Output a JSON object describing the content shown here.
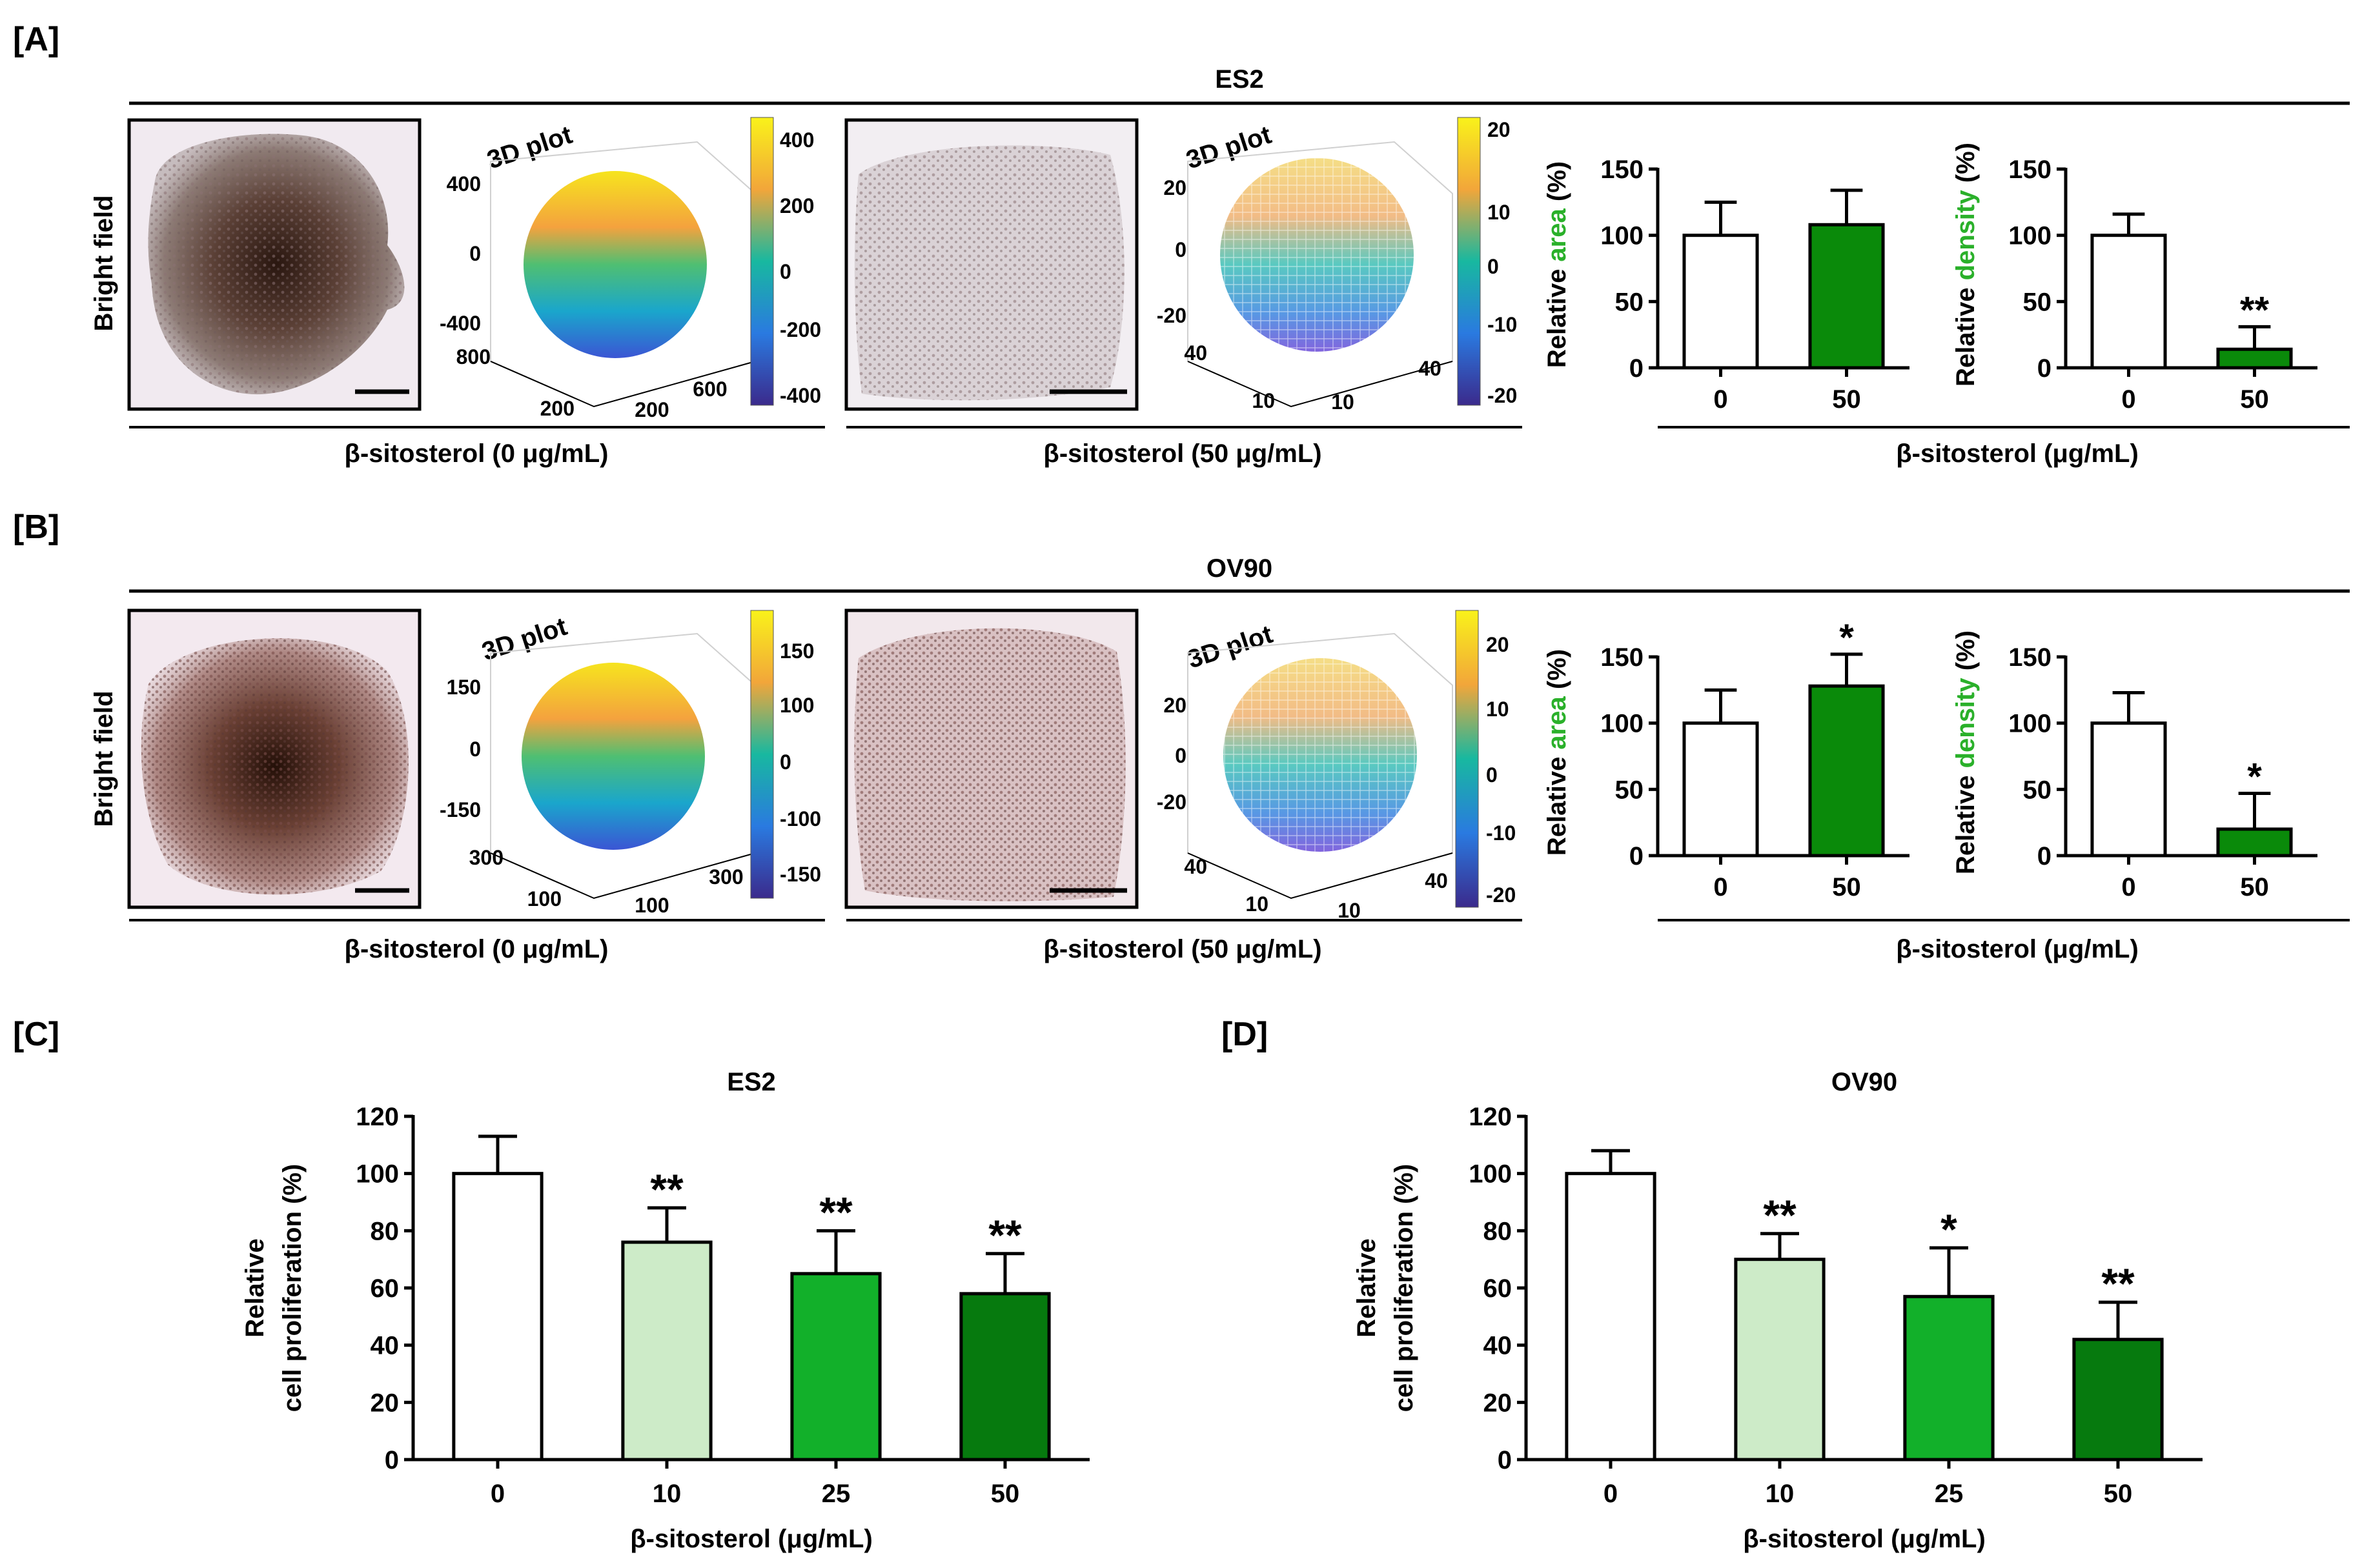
{
  "panels": {
    "A": {
      "tag": "[A]",
      "cell_line": "ES2",
      "row_label": "Bright field",
      "plot_title": "3D plot",
      "caption_0": "β-sitosterol (0 μg/mL)",
      "caption_50": "β-sitosterol (50 μg/mL)",
      "bar_axis_title": "β-sitosterol (μg/mL)",
      "plot0": {
        "z_ticks": [
          "400",
          "0",
          "-400"
        ],
        "y_ticks": [
          "800",
          "200"
        ],
        "x_ticks": [
          "200",
          "600"
        ],
        "colorbar_ticks": [
          "400",
          "200",
          "0",
          "-200",
          "-400"
        ]
      },
      "plot50": {
        "z_ticks": [
          "20",
          "0",
          "-20"
        ],
        "y_ticks": [
          "40",
          "10"
        ],
        "x_ticks": [
          "10",
          "40"
        ],
        "colorbar_ticks": [
          "20",
          "10",
          "0",
          "-10",
          "-20"
        ]
      }
    },
    "B": {
      "tag": "[B]",
      "cell_line": "OV90",
      "row_label": "Bright field",
      "plot_title": "3D plot",
      "caption_0": "β-sitosterol (0 μg/mL)",
      "caption_50": "β-sitosterol (50 μg/mL)",
      "bar_axis_title": "β-sitosterol (μg/mL)",
      "plot0": {
        "z_ticks": [
          "150",
          "0",
          "-150"
        ],
        "y_ticks": [
          "300",
          "100"
        ],
        "x_ticks": [
          "100",
          "300"
        ],
        "colorbar_ticks": [
          "150",
          "100",
          "0",
          "-100",
          "-150"
        ]
      },
      "plot50": {
        "z_ticks": [
          "20",
          "0",
          "-20"
        ],
        "y_ticks": [
          "40",
          "10"
        ],
        "x_ticks": [
          "10",
          "40"
        ],
        "colorbar_ticks": [
          "20",
          "10",
          "0",
          "-10",
          "-20"
        ]
      }
    },
    "C": {
      "tag": "[C]"
    },
    "D": {
      "tag": "[D]"
    }
  },
  "ylabels": {
    "relative": "Relative",
    "area": "area",
    "density": "density",
    "percent": "(%)",
    "prolif_line1": "Relative",
    "prolif_line2": "cell proliferation (%)"
  },
  "colors": {
    "open_bar": "#ffffff",
    "green_bar": "#0a8a0a",
    "green_light": "#cdebc8",
    "green_mid": "#12b02a",
    "green_dark": "#067a0e",
    "label_green": "#2ab02a"
  },
  "chart_data": [
    {
      "id": "A-area",
      "type": "bar",
      "categories": [
        "0",
        "50"
      ],
      "values": [
        100,
        108
      ],
      "errors": [
        25,
        26
      ],
      "significance": [
        "",
        ""
      ],
      "ylim": [
        0,
        150
      ],
      "yticks": [
        0,
        50,
        100,
        150
      ]
    },
    {
      "id": "A-density",
      "type": "bar",
      "categories": [
        "0",
        "50"
      ],
      "values": [
        100,
        14
      ],
      "errors": [
        16,
        17
      ],
      "significance": [
        "",
        "**"
      ],
      "ylim": [
        0,
        150
      ],
      "yticks": [
        0,
        50,
        100,
        150
      ]
    },
    {
      "id": "B-area",
      "type": "bar",
      "categories": [
        "0",
        "50"
      ],
      "values": [
        100,
        128
      ],
      "errors": [
        25,
        24
      ],
      "significance": [
        "",
        "*"
      ],
      "ylim": [
        0,
        150
      ],
      "yticks": [
        0,
        50,
        100,
        150
      ]
    },
    {
      "id": "B-density",
      "type": "bar",
      "categories": [
        "0",
        "50"
      ],
      "values": [
        100,
        20
      ],
      "errors": [
        23,
        27
      ],
      "significance": [
        "",
        "*"
      ],
      "ylim": [
        0,
        150
      ],
      "yticks": [
        0,
        50,
        100,
        150
      ]
    },
    {
      "id": "C",
      "type": "bar",
      "title": "ES2",
      "xlabel": "β-sitosterol (μg/mL)",
      "categories": [
        "0",
        "10",
        "25",
        "50"
      ],
      "values": [
        100,
        76,
        65,
        58
      ],
      "errors": [
        13,
        12,
        15,
        14
      ],
      "significance": [
        "",
        "**",
        "**",
        "**"
      ],
      "ylim": [
        0,
        120
      ],
      "yticks": [
        0,
        20,
        40,
        60,
        80,
        100,
        120
      ]
    },
    {
      "id": "D",
      "type": "bar",
      "title": "OV90",
      "xlabel": "β-sitosterol (μg/mL)",
      "categories": [
        "0",
        "10",
        "25",
        "50"
      ],
      "values": [
        100,
        70,
        57,
        42
      ],
      "errors": [
        8,
        9,
        17,
        13
      ],
      "significance": [
        "",
        "**",
        "*",
        "**"
      ],
      "ylim": [
        0,
        120
      ],
      "yticks": [
        0,
        20,
        40,
        60,
        80,
        100,
        120
      ]
    }
  ]
}
